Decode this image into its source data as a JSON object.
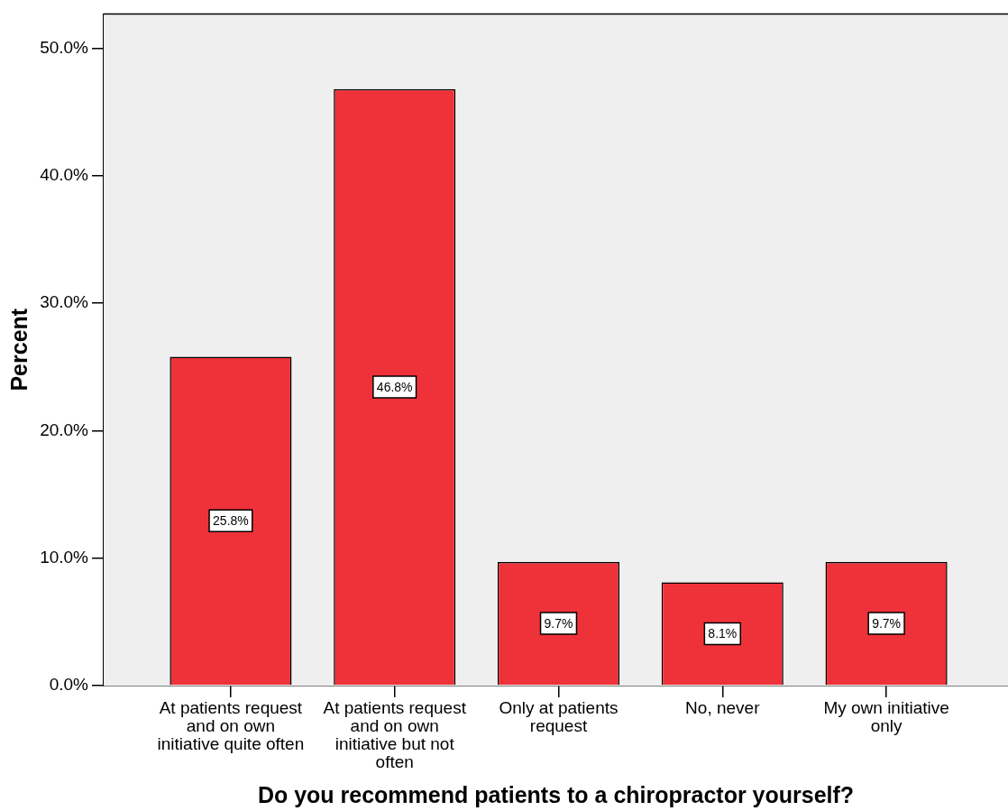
{
  "chart_data": {
    "type": "bar",
    "xlabel": "Do you recommend patients to a chiropractor yourself?",
    "ylabel": "Percent",
    "categories": [
      "At patients request and on own initiative quite often",
      "At patients request and on own initiative but not often",
      "Only at patients request",
      "No, never",
      "My own initiative only"
    ],
    "values": [
      25.8,
      46.8,
      9.7,
      8.1,
      9.7
    ],
    "color": "#ef323a",
    "value_labels": [
      "25.8%",
      "46.8%",
      "9.7%",
      "8.1%",
      "9.7%"
    ],
    "ylim": [
      0,
      52.7
    ],
    "yticks": [
      {
        "value": 0,
        "label": "0.0%"
      },
      {
        "value": 10,
        "label": "10.0%"
      },
      {
        "value": 20,
        "label": "20.0%"
      },
      {
        "value": 30,
        "label": "30.0%"
      },
      {
        "value": 40,
        "label": "40.0%"
      },
      {
        "value": 50,
        "label": "50.0%"
      }
    ]
  }
}
